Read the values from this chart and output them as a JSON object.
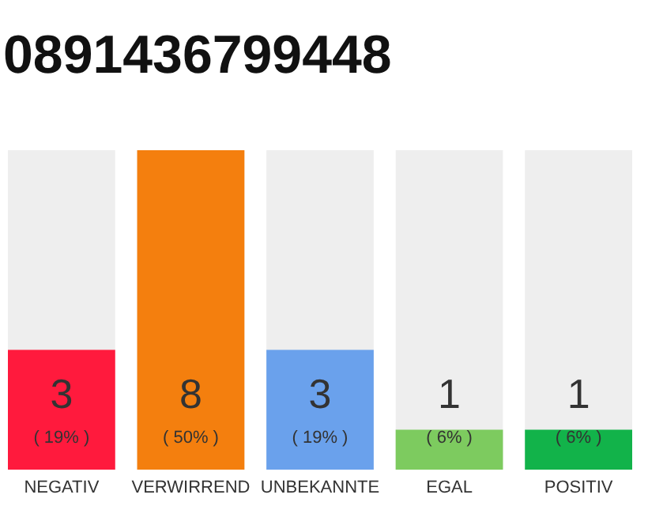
{
  "chart_data": {
    "type": "bar",
    "title": "0891436799448",
    "categories": [
      "NEGATIV",
      "VERWIRREND",
      "UNBEKANNTE",
      "EGAL",
      "POSITIV"
    ],
    "values": [
      3,
      8,
      3,
      1,
      1
    ],
    "colors": [
      "#ff1a3d",
      "#f47f0e",
      "#6aa1ec",
      "#7dcb5f",
      "#12b34a"
    ],
    "ylim": [
      0,
      8
    ],
    "tick_labels": "x",
    "grid": false,
    "data_labels": true,
    "annotations": [
      "( 19% )",
      "( 50% )",
      "( 19% )",
      "( 6% )",
      "( 6% )"
    ]
  }
}
